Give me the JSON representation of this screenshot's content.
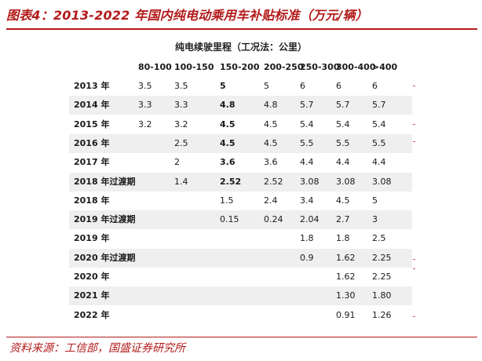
{
  "title": "图表4：2013-2022 年国内纯电动乘用车补贴标准（万元/辆）",
  "table_title": "纯电续驶里程（工况法：公里）",
  "columns": [
    "80-100",
    "100-150",
    "150-200",
    "200-250",
    "250-300",
    "300-400",
    ">400"
  ],
  "rows": [
    {
      "label": "2013 年",
      "cells": [
        "3.5",
        "3.5",
        "5",
        "5",
        "6",
        "6",
        "6"
      ]
    },
    {
      "label": "2014 年",
      "cells": [
        "3.3",
        "3.3",
        "4.8",
        "4.8",
        "5.7",
        "5.7",
        "5.7"
      ]
    },
    {
      "label": "2015 年",
      "cells": [
        "3.2",
        "3.2",
        "4.5",
        "4.5",
        "5.4",
        "5.4",
        "5.4"
      ]
    },
    {
      "label": "2016 年",
      "cells": [
        "",
        "2.5",
        "4.5",
        "4.5",
        "5.5",
        "5.5",
        "5.5"
      ]
    },
    {
      "label": "2017 年",
      "cells": [
        "",
        "2",
        "3.6",
        "3.6",
        "4.4",
        "4.4",
        "4.4"
      ]
    },
    {
      "label": "2018 年过渡期",
      "cells": [
        "",
        "1.4",
        "2.52",
        "2.52",
        "3.08",
        "3.08",
        "3.08"
      ]
    },
    {
      "label": "2018 年",
      "cells": [
        "",
        "",
        "1.5",
        "2.4",
        "3.4",
        "4.5",
        "5"
      ]
    },
    {
      "label": "2019 年过渡期",
      "cells": [
        "",
        "",
        "0.15",
        "0.24",
        "2.04",
        "2.7",
        "3"
      ]
    },
    {
      "label": "2019 年",
      "cells": [
        "",
        "",
        "",
        "",
        "1.8",
        "1.8",
        "2.5"
      ]
    },
    {
      "label": "2020 年过渡期",
      "cells": [
        "",
        "",
        "",
        "",
        "0.9",
        "1.62",
        "2.25"
      ]
    },
    {
      "label": "2020 年",
      "cells": [
        "",
        "",
        "",
        "",
        "",
        "1.62",
        "2.25"
      ]
    },
    {
      "label": "2021 年",
      "cells": [
        "",
        "",
        "",
        "",
        "",
        "1.30",
        "1.80"
      ]
    },
    {
      "label": "2022 年",
      "cells": [
        "",
        "",
        "",
        "",
        "",
        "0.91",
        "1.26"
      ]
    }
  ],
  "source": "资料来源：工信部，国盛证券研究所"
}
